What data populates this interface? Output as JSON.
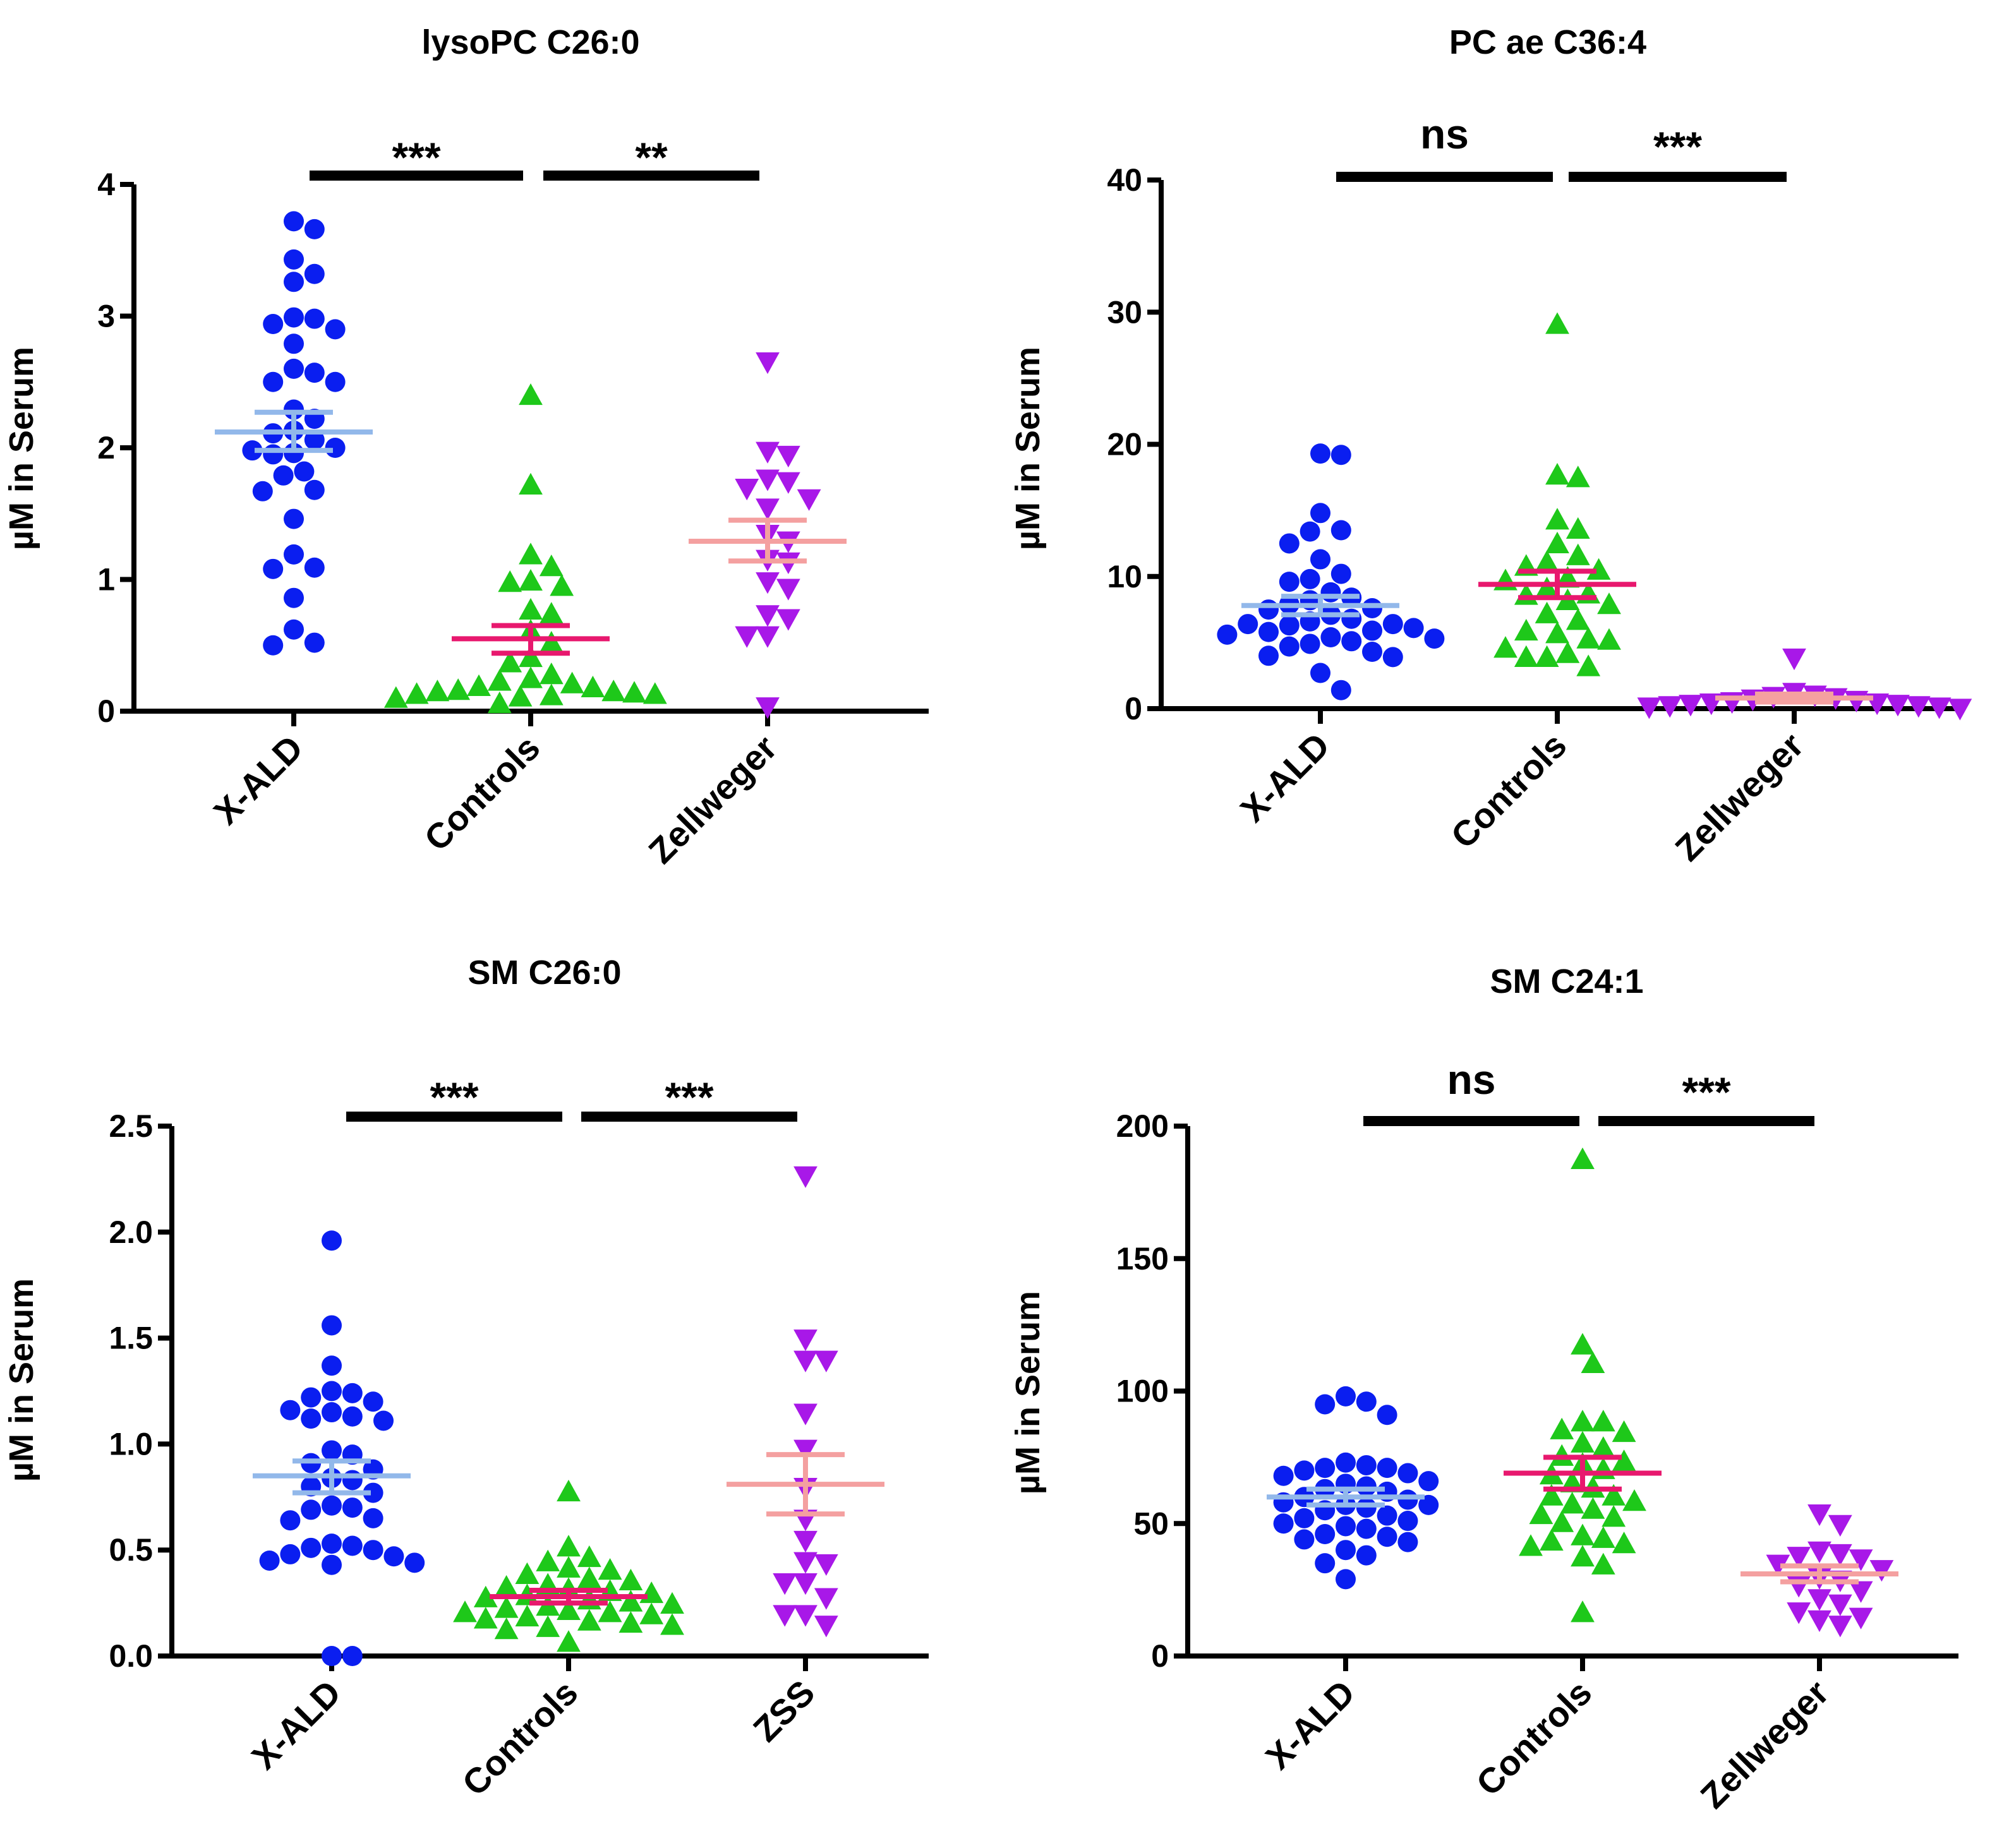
{
  "chart_data": [
    {
      "type": "scatter",
      "title": "lysoPC C26:0",
      "ylabel": "µM in Serum",
      "ylim": [
        0,
        4
      ],
      "yticks": [
        "0",
        "1",
        "2",
        "3",
        "4"
      ],
      "ytick_values": [
        0,
        1,
        2,
        3,
        4
      ],
      "categories": [
        "X-ALD",
        "Controls",
        "Zellweger"
      ],
      "series": [
        {
          "name": "X-ALD",
          "marker": "circle",
          "color": "#0a1ef0",
          "mean": 2.12,
          "sem_low": 1.98,
          "sem_high": 2.27,
          "mean_color": "#92b8ea",
          "values": [
            3.72,
            3.66,
            3.43,
            3.32,
            3.26,
            2.99,
            2.98,
            2.94,
            2.9,
            2.79,
            2.6,
            2.57,
            2.5,
            2.5,
            2.29,
            2.22,
            2.13,
            2.11,
            2.06,
            2.0,
            1.98,
            1.96,
            1.95,
            1.82,
            1.79,
            1.68,
            1.67,
            1.46,
            1.19,
            1.09,
            1.08,
            0.86,
            0.62,
            0.52,
            0.5
          ]
        },
        {
          "name": "Controls",
          "marker": "triangle-up",
          "color": "#1ec81a",
          "mean": 0.55,
          "sem_low": 0.44,
          "sem_high": 0.65,
          "mean_color": "#e8186e",
          "values": [
            2.39,
            1.71,
            1.18,
            1.09,
            0.98,
            0.97,
            0.94,
            0.76,
            0.73,
            0.6,
            0.51,
            0.4,
            0.36,
            0.27,
            0.24,
            0.22,
            0.2,
            0.18,
            0.17,
            0.15,
            0.14,
            0.14,
            0.13,
            0.12,
            0.12,
            0.11,
            0.1,
            0.09,
            0.05
          ]
        },
        {
          "name": "Zellweger",
          "marker": "triangle-down",
          "color": "#a818e8",
          "mean": 1.29,
          "sem_low": 1.14,
          "sem_high": 1.45,
          "mean_color": "#f4a0a0",
          "values": [
            2.66,
            1.98,
            1.95,
            1.77,
            1.75,
            1.7,
            1.62,
            1.55,
            1.35,
            1.3,
            1.16,
            1.14,
            0.99,
            0.94,
            0.74,
            0.71,
            0.58,
            0.58,
            0.04
          ]
        }
      ],
      "significance": [
        {
          "from": 0,
          "to": 1,
          "label": "***"
        },
        {
          "from": 1,
          "to": 2,
          "label": "**"
        }
      ]
    },
    {
      "type": "scatter",
      "title": "PC ae C36:4",
      "ylabel": "µM in Serum",
      "ylim": [
        0,
        40
      ],
      "yticks": [
        "0",
        "10",
        "20",
        "30",
        "40"
      ],
      "ytick_values": [
        0,
        10,
        20,
        30,
        40
      ],
      "categories": [
        "X-ALD",
        "Controls",
        "Zellweger"
      ],
      "series": [
        {
          "name": "X-ALD",
          "marker": "circle",
          "color": "#0a1ef0",
          "mean": 7.8,
          "sem_low": 7.1,
          "sem_high": 8.5,
          "mean_color": "#92b8ea",
          "values": [
            19.3,
            19.2,
            14.8,
            13.5,
            13.4,
            12.5,
            11.3,
            10.2,
            9.8,
            9.6,
            8.8,
            8.4,
            8.2,
            7.9,
            7.6,
            7.5,
            7.1,
            6.8,
            6.6,
            6.4,
            6.4,
            6.3,
            6.1,
            5.9,
            5.8,
            5.6,
            5.4,
            5.3,
            5.1,
            4.9,
            4.7,
            4.3,
            4.0,
            3.9,
            2.7,
            1.4
          ]
        },
        {
          "name": "Controls",
          "marker": "triangle-up",
          "color": "#1ec81a",
          "mean": 9.4,
          "sem_low": 8.4,
          "sem_high": 10.4,
          "mean_color": "#e8186e",
          "values": [
            29.0,
            17.6,
            17.4,
            14.2,
            13.5,
            12.4,
            11.5,
            11.0,
            10.7,
            10.4,
            9.8,
            9.6,
            9.0,
            8.6,
            8.5,
            8.1,
            7.8,
            7.1,
            6.6,
            5.8,
            5.6,
            5.2,
            5.1,
            4.5,
            4.1,
            3.8,
            3.8,
            3.1
          ]
        },
        {
          "name": "Zellweger",
          "marker": "triangle-down",
          "color": "#a818e8",
          "mean": 0.8,
          "sem_low": 0.5,
          "sem_high": 1.1,
          "mean_color": "#f4a0a0",
          "values": [
            3.9,
            1.3,
            1.1,
            1.0,
            0.9,
            0.8,
            0.7,
            0.6,
            0.5,
            0.5,
            0.4,
            0.4,
            0.3,
            0.3,
            0.2,
            0.2,
            0.1
          ]
        }
      ],
      "significance": [
        {
          "from": 0,
          "to": 1,
          "label": "ns"
        },
        {
          "from": 1,
          "to": 2,
          "label": "***"
        }
      ]
    },
    {
      "type": "scatter",
      "title": "SM C26:0",
      "ylabel": "µM in Serum",
      "ylim": [
        0,
        2.5
      ],
      "yticks": [
        "0.0",
        "0.5",
        "1.0",
        "1.5",
        "2.0",
        "2.5"
      ],
      "ytick_values": [
        0,
        0.5,
        1.0,
        1.5,
        2.0,
        2.5
      ],
      "categories": [
        "X-ALD",
        "Controls",
        "ZSS"
      ],
      "series": [
        {
          "name": "X-ALD",
          "marker": "circle",
          "color": "#0a1ef0",
          "mean": 0.85,
          "sem_low": 0.77,
          "sem_high": 0.92,
          "mean_color": "#92b8ea",
          "values": [
            1.96,
            1.56,
            1.37,
            1.25,
            1.24,
            1.22,
            1.2,
            1.16,
            1.15,
            1.13,
            1.12,
            1.11,
            0.97,
            0.95,
            0.91,
            0.88,
            0.84,
            0.83,
            0.8,
            0.77,
            0.71,
            0.7,
            0.69,
            0.65,
            0.64,
            0.53,
            0.52,
            0.51,
            0.5,
            0.48,
            0.47,
            0.45,
            0.44,
            0.43,
            0.0,
            0.0
          ]
        },
        {
          "name": "Controls",
          "marker": "triangle-up",
          "color": "#1ec81a",
          "mean": 0.28,
          "sem_low": 0.25,
          "sem_high": 0.31,
          "mean_color": "#e8186e",
          "values": [
            0.77,
            0.51,
            0.46,
            0.44,
            0.41,
            0.4,
            0.38,
            0.36,
            0.35,
            0.33,
            0.32,
            0.31,
            0.3,
            0.29,
            0.28,
            0.27,
            0.26,
            0.25,
            0.24,
            0.23,
            0.22,
            0.21,
            0.2,
            0.2,
            0.19,
            0.18,
            0.17,
            0.16,
            0.15,
            0.14,
            0.13,
            0.12,
            0.06
          ]
        },
        {
          "name": "ZSS",
          "marker": "triangle-down",
          "color": "#a818e8",
          "mean": 0.81,
          "sem_low": 0.67,
          "sem_high": 0.95,
          "mean_color": "#f4a0a0",
          "values": [
            2.27,
            1.5,
            1.4,
            1.4,
            1.15,
            0.98,
            0.8,
            0.65,
            0.55,
            0.45,
            0.44,
            0.35,
            0.35,
            0.28,
            0.2,
            0.2,
            0.15
          ]
        }
      ],
      "significance": [
        {
          "from": 0,
          "to": 1,
          "label": "***"
        },
        {
          "from": 1,
          "to": 2,
          "label": "***"
        }
      ]
    },
    {
      "type": "scatter",
      "title": "SM C24:1",
      "ylabel": "µM in Serum",
      "ylim": [
        0,
        200
      ],
      "yticks": [
        "0",
        "50",
        "100",
        "150",
        "200"
      ],
      "ytick_values": [
        0,
        50,
        100,
        150,
        200
      ],
      "categories": [
        "X-ALD",
        "Controls",
        "Zellweger"
      ],
      "series": [
        {
          "name": "X-ALD",
          "marker": "circle",
          "color": "#0a1ef0",
          "mean": 60,
          "sem_low": 57,
          "sem_high": 63,
          "mean_color": "#92b8ea",
          "values": [
            98,
            96,
            95,
            91,
            73,
            72,
            71,
            71,
            70,
            69,
            68,
            66,
            65,
            64,
            63,
            62,
            60,
            59,
            58,
            57,
            57,
            56,
            55,
            53,
            52,
            51,
            50,
            49,
            48,
            46,
            45,
            44,
            43,
            40,
            38,
            35,
            29
          ]
        },
        {
          "name": "Controls",
          "marker": "triangle-up",
          "color": "#1ec81a",
          "mean": 69,
          "sem_low": 63,
          "sem_high": 75,
          "mean_color": "#e8186e",
          "values": [
            187,
            117,
            110,
            88,
            88,
            85,
            84,
            80,
            78,
            75,
            73,
            72,
            70,
            68,
            65,
            63,
            60,
            60,
            58,
            57,
            55,
            53,
            52,
            50,
            45,
            44,
            43,
            42,
            41,
            37,
            34,
            16
          ]
        },
        {
          "name": "Zellweger",
          "marker": "triangle-down",
          "color": "#a818e8",
          "mean": 31,
          "sem_low": 28,
          "sem_high": 34,
          "mean_color": "#f4a0a0",
          "values": [
            54,
            50,
            40,
            39,
            38,
            37,
            35,
            33,
            30,
            29,
            27,
            25,
            22,
            20,
            17,
            15,
            14,
            12
          ]
        }
      ],
      "significance": [
        {
          "from": 0,
          "to": 1,
          "label": "ns"
        },
        {
          "from": 1,
          "to": 2,
          "label": "***"
        }
      ]
    }
  ]
}
